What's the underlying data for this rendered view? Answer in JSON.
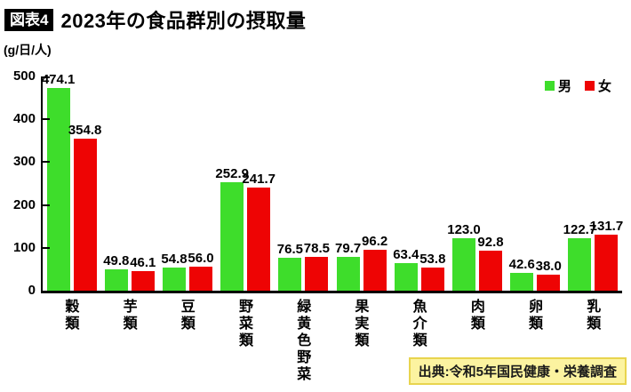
{
  "header": {
    "tag": "図表4",
    "title": "2023年の食品群別の摂取量"
  },
  "unit_label": "(g/日/人)",
  "legend": {
    "male_label": "男",
    "female_label": "女"
  },
  "colors": {
    "male_bar": "#3edd2b",
    "female_bar": "#ee0404",
    "axis": "#000000",
    "source_bg": "#fcf3a0",
    "source_border": "#e8d44e",
    "tag_bg": "#000000",
    "tag_text": "#ffffff"
  },
  "source": {
    "text": "出典:令和5年国民健康・栄養調査"
  },
  "chart_data": {
    "type": "bar",
    "title": "2023年の食品群別の摂取量",
    "ylabel": "(g/日/人)",
    "categories": [
      "穀類",
      "芋類",
      "豆類",
      "野菜類",
      "緑黄色野菜",
      "果実類",
      "魚介類",
      "肉類",
      "卵類",
      "乳類"
    ],
    "series": [
      {
        "name": "男",
        "color": "#3edd2b",
        "values": [
          474.1,
          49.8,
          54.8,
          252.9,
          76.5,
          79.7,
          63.4,
          123.0,
          42.6,
          122.7
        ]
      },
      {
        "name": "女",
        "color": "#ee0404",
        "values": [
          354.8,
          46.1,
          56.0,
          241.7,
          78.5,
          96.2,
          53.8,
          92.8,
          38.0,
          131.7
        ]
      }
    ],
    "ylim": [
      0,
      500
    ],
    "yticks": [
      0,
      100,
      200,
      300,
      400,
      500
    ],
    "grid": false,
    "legend_position": "top-right",
    "value_labels": "above-bars",
    "category_label_orientation": "vertical"
  }
}
